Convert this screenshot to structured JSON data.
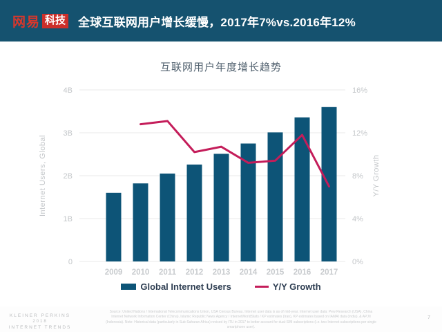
{
  "header": {
    "logo_netease": "网易",
    "logo_tech": "科技",
    "title": "全球互联网用户增长缓慢，2017年7%vs.2016年12%"
  },
  "chart_data": {
    "type": "bar",
    "title": "互联网用户年度增长趋势",
    "categories": [
      "2009",
      "2010",
      "2011",
      "2012",
      "2013",
      "2014",
      "2015",
      "2016",
      "2017"
    ],
    "series": [
      {
        "name": "Global Internet Users",
        "type": "bar",
        "axis": "left",
        "values": [
          1.6,
          1.82,
          2.05,
          2.26,
          2.51,
          2.75,
          3.01,
          3.36,
          3.6
        ],
        "color": "#0d5477"
      },
      {
        "name": "Y/Y Growth",
        "type": "line",
        "axis": "right",
        "values": [
          null,
          12.8,
          13.1,
          10.2,
          10.7,
          9.2,
          9.4,
          11.8,
          7.0
        ],
        "color": "#c41d5a"
      }
    ],
    "left_axis": {
      "label": "Internet Users, Global",
      "min": 0,
      "max": 4,
      "ticks": [
        "4B",
        "3B",
        "2B",
        "1B",
        "0"
      ]
    },
    "right_axis": {
      "label": "Y/Y Growth",
      "min": 0,
      "max": 16,
      "ticks": [
        "16%",
        "12%",
        "8%",
        "4%",
        "0%"
      ]
    },
    "grid": true,
    "legend_position": "bottom",
    "colors": {
      "gridline": "#e9e9e9",
      "tick_label": "#c3c6c9",
      "x_label": "#c8cbce"
    }
  },
  "footer": {
    "brand_line1": "KLEINER PERKINS",
    "brand_line2": "2018",
    "brand_line3": "INTERNET TRENDS",
    "source": "Source: United Nations / International Telecommunications Union, USA Census Bureau. Internet user data is as of mid-year. Internet user data: Pew Research (USA), China Internet Network Information Center (China), Islamic Republic News Agency / InternetWorldStats / KP estimates (Iran), KP estimates based on IAMAI data (India), & APJII (Indonesia). Note: Historical data (particularly in Sub-Saharan Africa) revised by ITU in 2017 to better account for dual-SIM subscriptions (i.e. two Internet subscriptions per single smartphone user).",
    "page_number": "7"
  }
}
